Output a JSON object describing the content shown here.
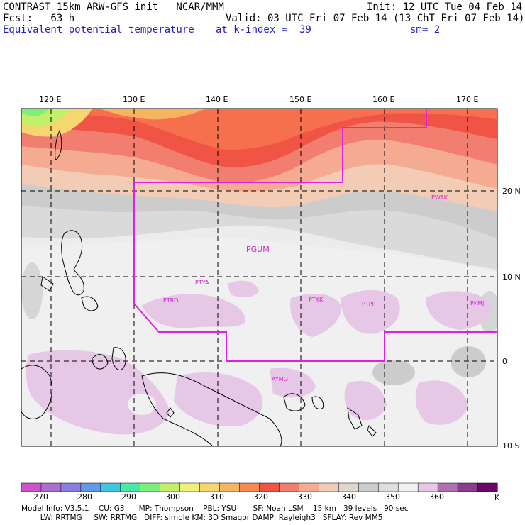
{
  "header": {
    "model": "CONTRAST 15km ARW-GFS init   NCAR/MMM",
    "init": "Init: 12 UTC Tue 04 Feb 14",
    "fcst": "Fcst:   63 h",
    "valid": "Valid: 03 UTC Fri 07 Feb 14 (13 ChT Fri 07 Feb 14)",
    "field": "Equivalent potential temperature",
    "level": "at k-index =  39",
    "smooth": "sm= 2"
  },
  "axes": {
    "lon_labels": [
      "120 E",
      "130 E",
      "140 E",
      "150 E",
      "160 E",
      "170 E"
    ],
    "lat_labels": [
      "20 N",
      "10 N",
      "0",
      "10 S"
    ]
  },
  "stations": [
    "PGUM",
    "PWAK",
    "PTYA",
    "PTRO",
    "PTKK",
    "PTPP",
    "PKMJ",
    "AYMO"
  ],
  "colorbar": {
    "colors": [
      "#cc55cc",
      "#a870d0",
      "#8a7ee6",
      "#5f9be8",
      "#3cc8e0",
      "#48e8a8",
      "#7df07a",
      "#c3f06a",
      "#f0f078",
      "#f6d66e",
      "#f7b45e",
      "#f68a50",
      "#f05444",
      "#f27e70",
      "#f5aa92",
      "#f2ccb4",
      "#e0d6cc",
      "#cccccc",
      "#dedede",
      "#f0f0f0",
      "#e6c8e6",
      "#b070b0",
      "#8c3c8c",
      "#6c086c"
    ],
    "labels": [
      "270",
      "280",
      "290",
      "300",
      "310",
      "320",
      "330",
      "340",
      "350",
      "360"
    ],
    "unit": "K"
  },
  "footer": {
    "line1": "Model Info: V3.5.1    CU: G3      MP: Thompson    PBL: YSU       SF: Noah LSM    15 km   39 levels   90 sec",
    "line2": "        LW: RRTMG     SW: RRTMG   DIFF: simple KM: 3D Smagor DAMP: Rayleigh3   SFLAY: Rev MM5"
  }
}
